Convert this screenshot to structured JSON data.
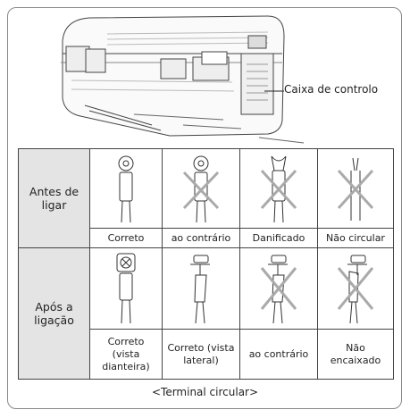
{
  "callout": "Caixa de controlo",
  "table": {
    "rows": [
      {
        "header": "Antes de ligar",
        "cells": [
          "Correto",
          "ao contrário",
          "Danificado",
          "Não circular"
        ]
      },
      {
        "header": "Após a ligação",
        "cells": [
          "Correto (vista dianteira)",
          "Correto (vista lateral)",
          "ao contrário",
          "Não encaixado"
        ]
      }
    ]
  },
  "caption": "<Terminal circular>"
}
